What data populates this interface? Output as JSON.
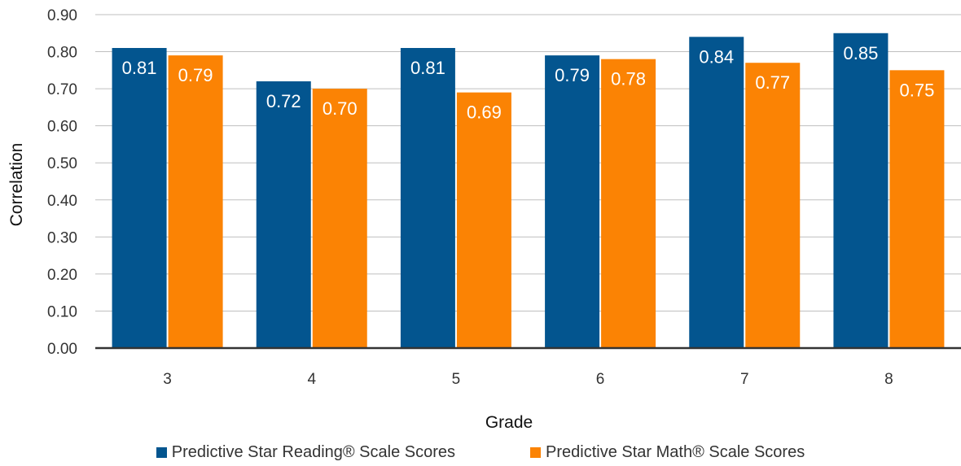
{
  "chart_data": {
    "type": "bar",
    "categories": [
      "3",
      "4",
      "5",
      "6",
      "7",
      "8"
    ],
    "series": [
      {
        "name": "Predictive Star Reading® Scale Scores",
        "values": [
          0.81,
          0.72,
          0.81,
          0.79,
          0.84,
          0.85
        ],
        "labels": [
          "0.81",
          "0.72",
          "0.81",
          "0.79",
          "0.84",
          "0.85"
        ],
        "color": "#03558f"
      },
      {
        "name": "Predictive Star Math® Scale Scores",
        "values": [
          0.79,
          0.7,
          0.69,
          0.78,
          0.77,
          0.75
        ],
        "labels": [
          "0.79",
          "0.70",
          "0.69",
          "0.78",
          "0.77",
          "0.75"
        ],
        "color": "#fb8304"
      }
    ],
    "yticks": [
      0.0,
      0.1,
      0.2,
      0.3,
      0.4,
      0.5,
      0.6,
      0.7,
      0.8,
      0.9
    ],
    "ytick_labels": [
      "0.00",
      "0.10",
      "0.20",
      "0.30",
      "0.40",
      "0.50",
      "0.60",
      "0.70",
      "0.80",
      "0.90"
    ],
    "ylim": [
      0,
      0.9
    ],
    "xlabel": "Grade",
    "ylabel": "Correlation",
    "title": "",
    "grid": true,
    "legend_position": "bottom"
  }
}
